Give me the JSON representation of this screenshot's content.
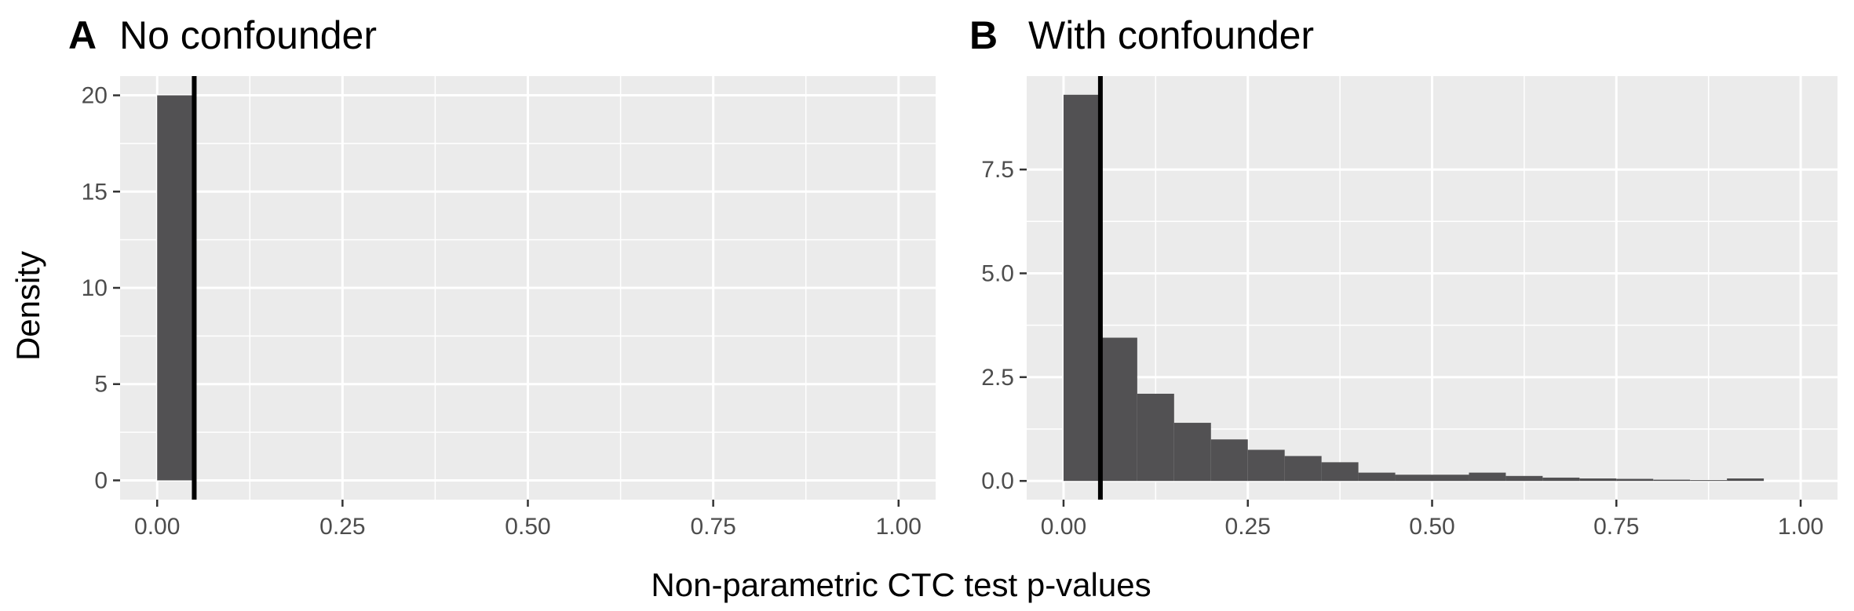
{
  "figure": {
    "ylabel": "Density",
    "xlabel": "Non-parametric CTC test p-values"
  },
  "chart_data": [
    {
      "type": "bar",
      "panel_tag": "A",
      "title": "No confounder",
      "xlim": [
        -0.05,
        1.05
      ],
      "ylim": [
        -1.0,
        21.0
      ],
      "xticks": [
        0,
        0.25,
        0.5,
        0.75,
        1.0
      ],
      "xtick_labels": [
        "0.00",
        "0.25",
        "0.50",
        "0.75",
        "1.00"
      ],
      "yticks": [
        0,
        5,
        10,
        15,
        20
      ],
      "ytick_labels": [
        "0",
        "5",
        "10",
        "15",
        "20"
      ],
      "bin_width": 0.05,
      "bins": [
        {
          "x0": 0.0,
          "x1": 0.05,
          "density": 20.0
        }
      ],
      "vline": 0.05,
      "grid": true,
      "background": "#ebebeb",
      "bar_color": "#525153"
    },
    {
      "type": "bar",
      "panel_tag": "B",
      "title": "With confounder",
      "xlim": [
        -0.05,
        1.05
      ],
      "ylim": [
        -0.45,
        9.75
      ],
      "xticks": [
        0,
        0.25,
        0.5,
        0.75,
        1.0
      ],
      "xtick_labels": [
        "0.00",
        "0.25",
        "0.50",
        "0.75",
        "1.00"
      ],
      "yticks": [
        0,
        2.5,
        5.0,
        7.5
      ],
      "ytick_labels": [
        "0.0",
        "2.5",
        "5.0",
        "7.5"
      ],
      "bin_width": 0.05,
      "bins": [
        {
          "x0": 0.0,
          "x1": 0.05,
          "density": 9.3
        },
        {
          "x0": 0.05,
          "x1": 0.1,
          "density": 3.45
        },
        {
          "x0": 0.1,
          "x1": 0.15,
          "density": 2.1
        },
        {
          "x0": 0.15,
          "x1": 0.2,
          "density": 1.4
        },
        {
          "x0": 0.2,
          "x1": 0.25,
          "density": 1.0
        },
        {
          "x0": 0.25,
          "x1": 0.3,
          "density": 0.75
        },
        {
          "x0": 0.3,
          "x1": 0.35,
          "density": 0.6
        },
        {
          "x0": 0.35,
          "x1": 0.4,
          "density": 0.45
        },
        {
          "x0": 0.4,
          "x1": 0.45,
          "density": 0.2
        },
        {
          "x0": 0.45,
          "x1": 0.5,
          "density": 0.15
        },
        {
          "x0": 0.5,
          "x1": 0.55,
          "density": 0.15
        },
        {
          "x0": 0.55,
          "x1": 0.6,
          "density": 0.2
        },
        {
          "x0": 0.6,
          "x1": 0.65,
          "density": 0.12
        },
        {
          "x0": 0.65,
          "x1": 0.7,
          "density": 0.08
        },
        {
          "x0": 0.7,
          "x1": 0.75,
          "density": 0.06
        },
        {
          "x0": 0.75,
          "x1": 0.8,
          "density": 0.05
        },
        {
          "x0": 0.8,
          "x1": 0.85,
          "density": 0.03
        },
        {
          "x0": 0.85,
          "x1": 0.9,
          "density": 0.02
        },
        {
          "x0": 0.9,
          "x1": 0.95,
          "density": 0.06
        }
      ],
      "vline": 0.05,
      "grid": true,
      "background": "#ebebeb",
      "bar_color": "#525153"
    }
  ]
}
